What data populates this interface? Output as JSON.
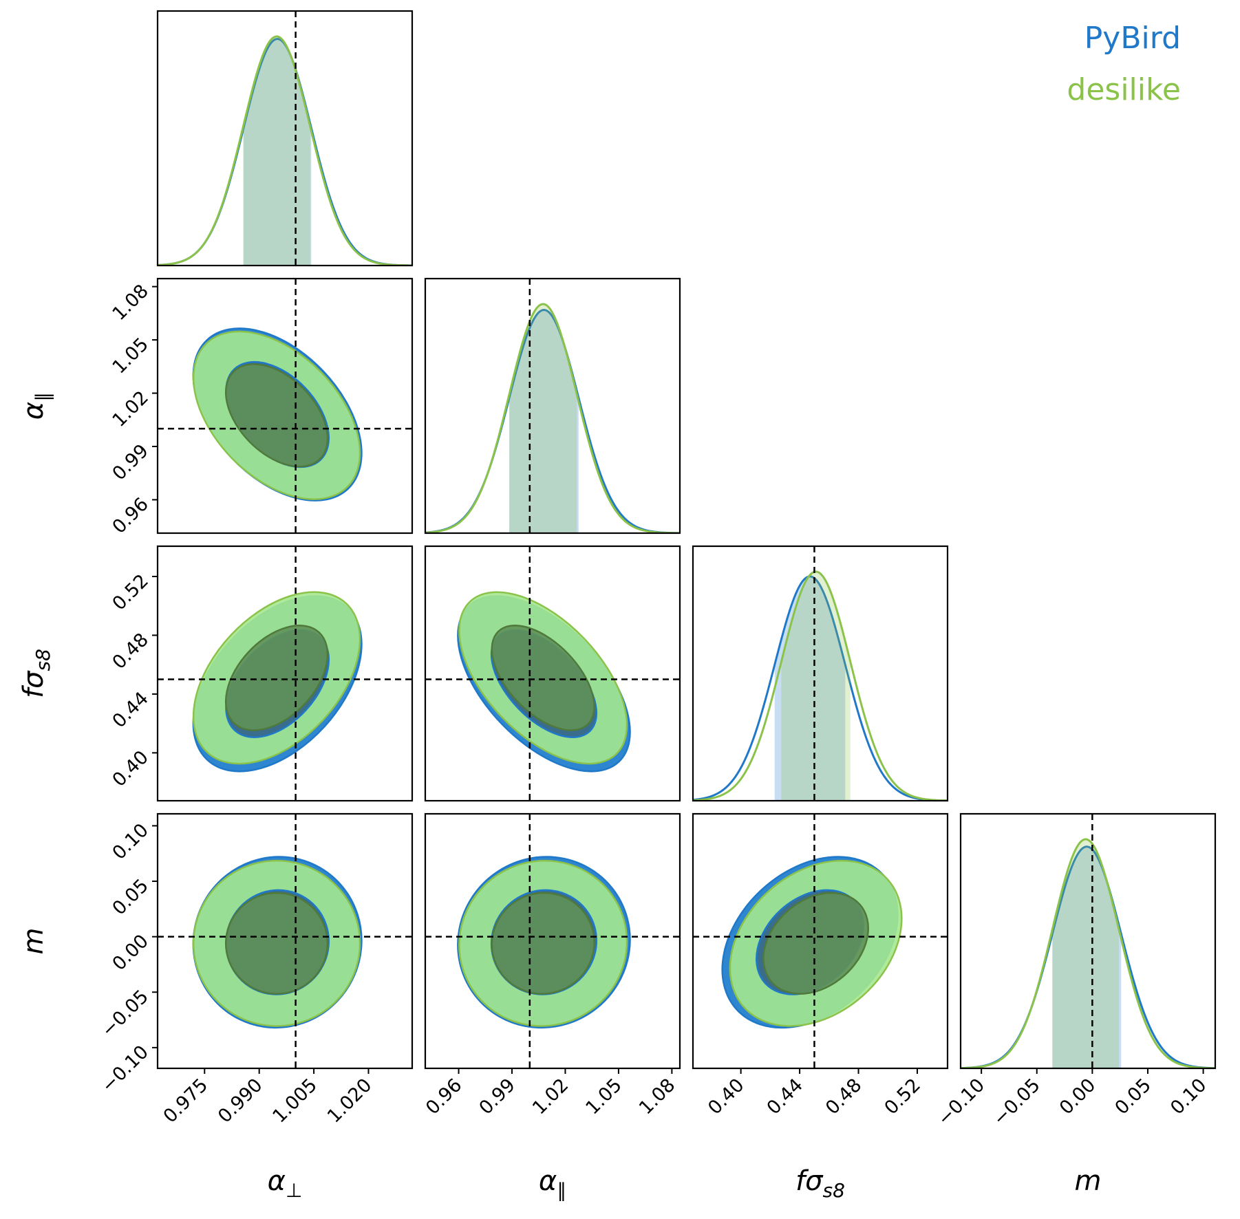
{
  "chart_data": {
    "type": "corner",
    "parameters": [
      {
        "symbol": "α",
        "subscript": "⊥",
        "lim": [
          0.9621,
          1.032
        ],
        "truth": 1.0,
        "ticks": [
          {
            "value": 0.975,
            "label": "0.975"
          },
          {
            "value": 0.99,
            "label": "0.990"
          },
          {
            "value": 1.005,
            "label": "1.005"
          },
          {
            "value": 1.02,
            "label": "1.020"
          }
        ]
      },
      {
        "symbol": "α",
        "subscript": "∥",
        "lim": [
          0.9412,
          1.0845
        ],
        "truth": 1.0,
        "ticks": [
          0.96,
          0.99,
          1.02,
          1.05,
          1.08
        ]
      },
      {
        "symbol": "fσ",
        "subscript": "s8",
        "lim": [
          0.3674,
          0.5406
        ],
        "truth": 0.45,
        "ticks": [
          {
            "value": 0.4,
            "label": "0.40"
          },
          0.44,
          0.48,
          0.52
        ]
      },
      {
        "symbol": "m",
        "lim": [
          -0.1187,
          0.1108
        ],
        "truth": 0.0,
        "ticks": [
          {
            "value": -0.1,
            "label": "−0.10"
          },
          {
            "value": -0.05,
            "label": "−0.05"
          },
          {
            "value": 0.0,
            "label": "0.00"
          },
          {
            "value": 0.05,
            "label": "0.05"
          },
          {
            "value": 0.1,
            "label": "0.10"
          }
        ]
      }
    ],
    "series": [
      {
        "name": "PyBird",
        "color": "#1f78c8",
        "fill_colors": [
          "#2e86d0",
          "#3a6d8c"
        ],
        "means": [
          0.995,
          1.008,
          0.447,
          -0.005
        ],
        "sigmas": [
          0.0093,
          0.0195,
          0.024,
          0.031
        ],
        "correlations": [
          -0.45,
          0.45,
          -0.55,
          0.02,
          0.03,
          0.32
        ]
      },
      {
        "name": "desilike",
        "color": "#8bc34a",
        "fill_colors": [
          "#a5e88e",
          "#5f9157"
        ],
        "means": [
          0.9948,
          1.0075,
          0.451,
          -0.006
        ],
        "sigmas": [
          0.0092,
          0.019,
          0.0235,
          0.03
        ],
        "correlations": [
          -0.45,
          0.45,
          -0.55,
          0.0,
          0.02,
          0.3
        ]
      }
    ]
  }
}
